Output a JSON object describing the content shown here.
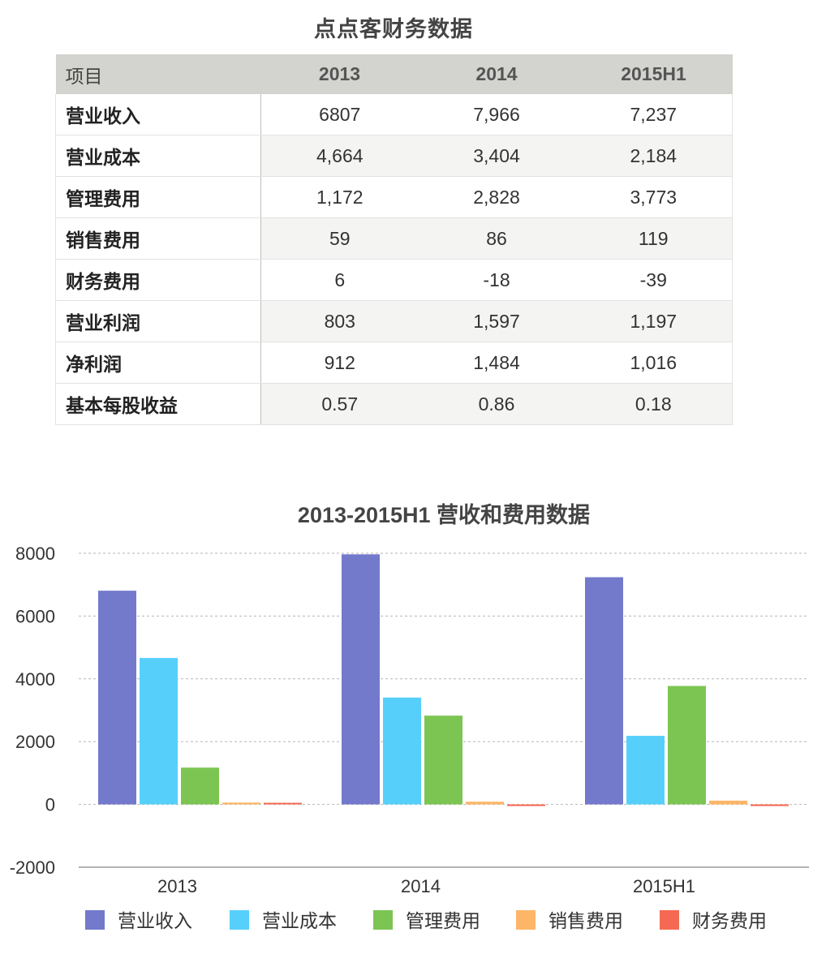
{
  "table": {
    "title": "点点客财务数据",
    "header": [
      "项目",
      "2013",
      "2014",
      "2015H1"
    ],
    "rows": [
      {
        "item": "营业收入",
        "values": [
          "6807",
          "7,966",
          "7,237"
        ]
      },
      {
        "item": "营业成本",
        "values": [
          "4,664",
          "3,404",
          "2,184"
        ]
      },
      {
        "item": "管理费用",
        "values": [
          "1,172",
          "2,828",
          "3,773"
        ]
      },
      {
        "item": "销售费用",
        "values": [
          "59",
          "86",
          "119"
        ]
      },
      {
        "item": "财务费用",
        "values": [
          "6",
          "-18",
          "-39"
        ]
      },
      {
        "item": "营业利润",
        "values": [
          "803",
          "1,597",
          "1,197"
        ]
      },
      {
        "item": "净利润",
        "values": [
          "912",
          "1,484",
          "1,016"
        ]
      },
      {
        "item": "基本每股收益",
        "values": [
          "0.57",
          "0.86",
          "0.18"
        ]
      }
    ]
  },
  "chart_data": {
    "type": "bar",
    "title": "2013-2015H1 营收和费用数据",
    "categories": [
      "2013",
      "2014",
      "2015H1"
    ],
    "series": [
      {
        "name": "营业收入",
        "color": "#7379cb",
        "values": [
          6807,
          7966,
          7237
        ]
      },
      {
        "name": "营业成本",
        "color": "#56d0fa",
        "values": [
          4664,
          3404,
          2184
        ]
      },
      {
        "name": "管理费用",
        "color": "#7cc553",
        "values": [
          1172,
          2828,
          3773
        ]
      },
      {
        "name": "销售费用",
        "color": "#fdb668",
        "values": [
          59,
          86,
          119
        ]
      },
      {
        "name": "财务费用",
        "color": "#f56952",
        "values": [
          6,
          -18,
          -39
        ]
      }
    ],
    "ylim": [
      -2000,
      8000
    ],
    "yticks": [
      "8000",
      "6000",
      "4000",
      "2000",
      "0",
      "-2000"
    ],
    "grid": true,
    "legend": "bottom"
  }
}
